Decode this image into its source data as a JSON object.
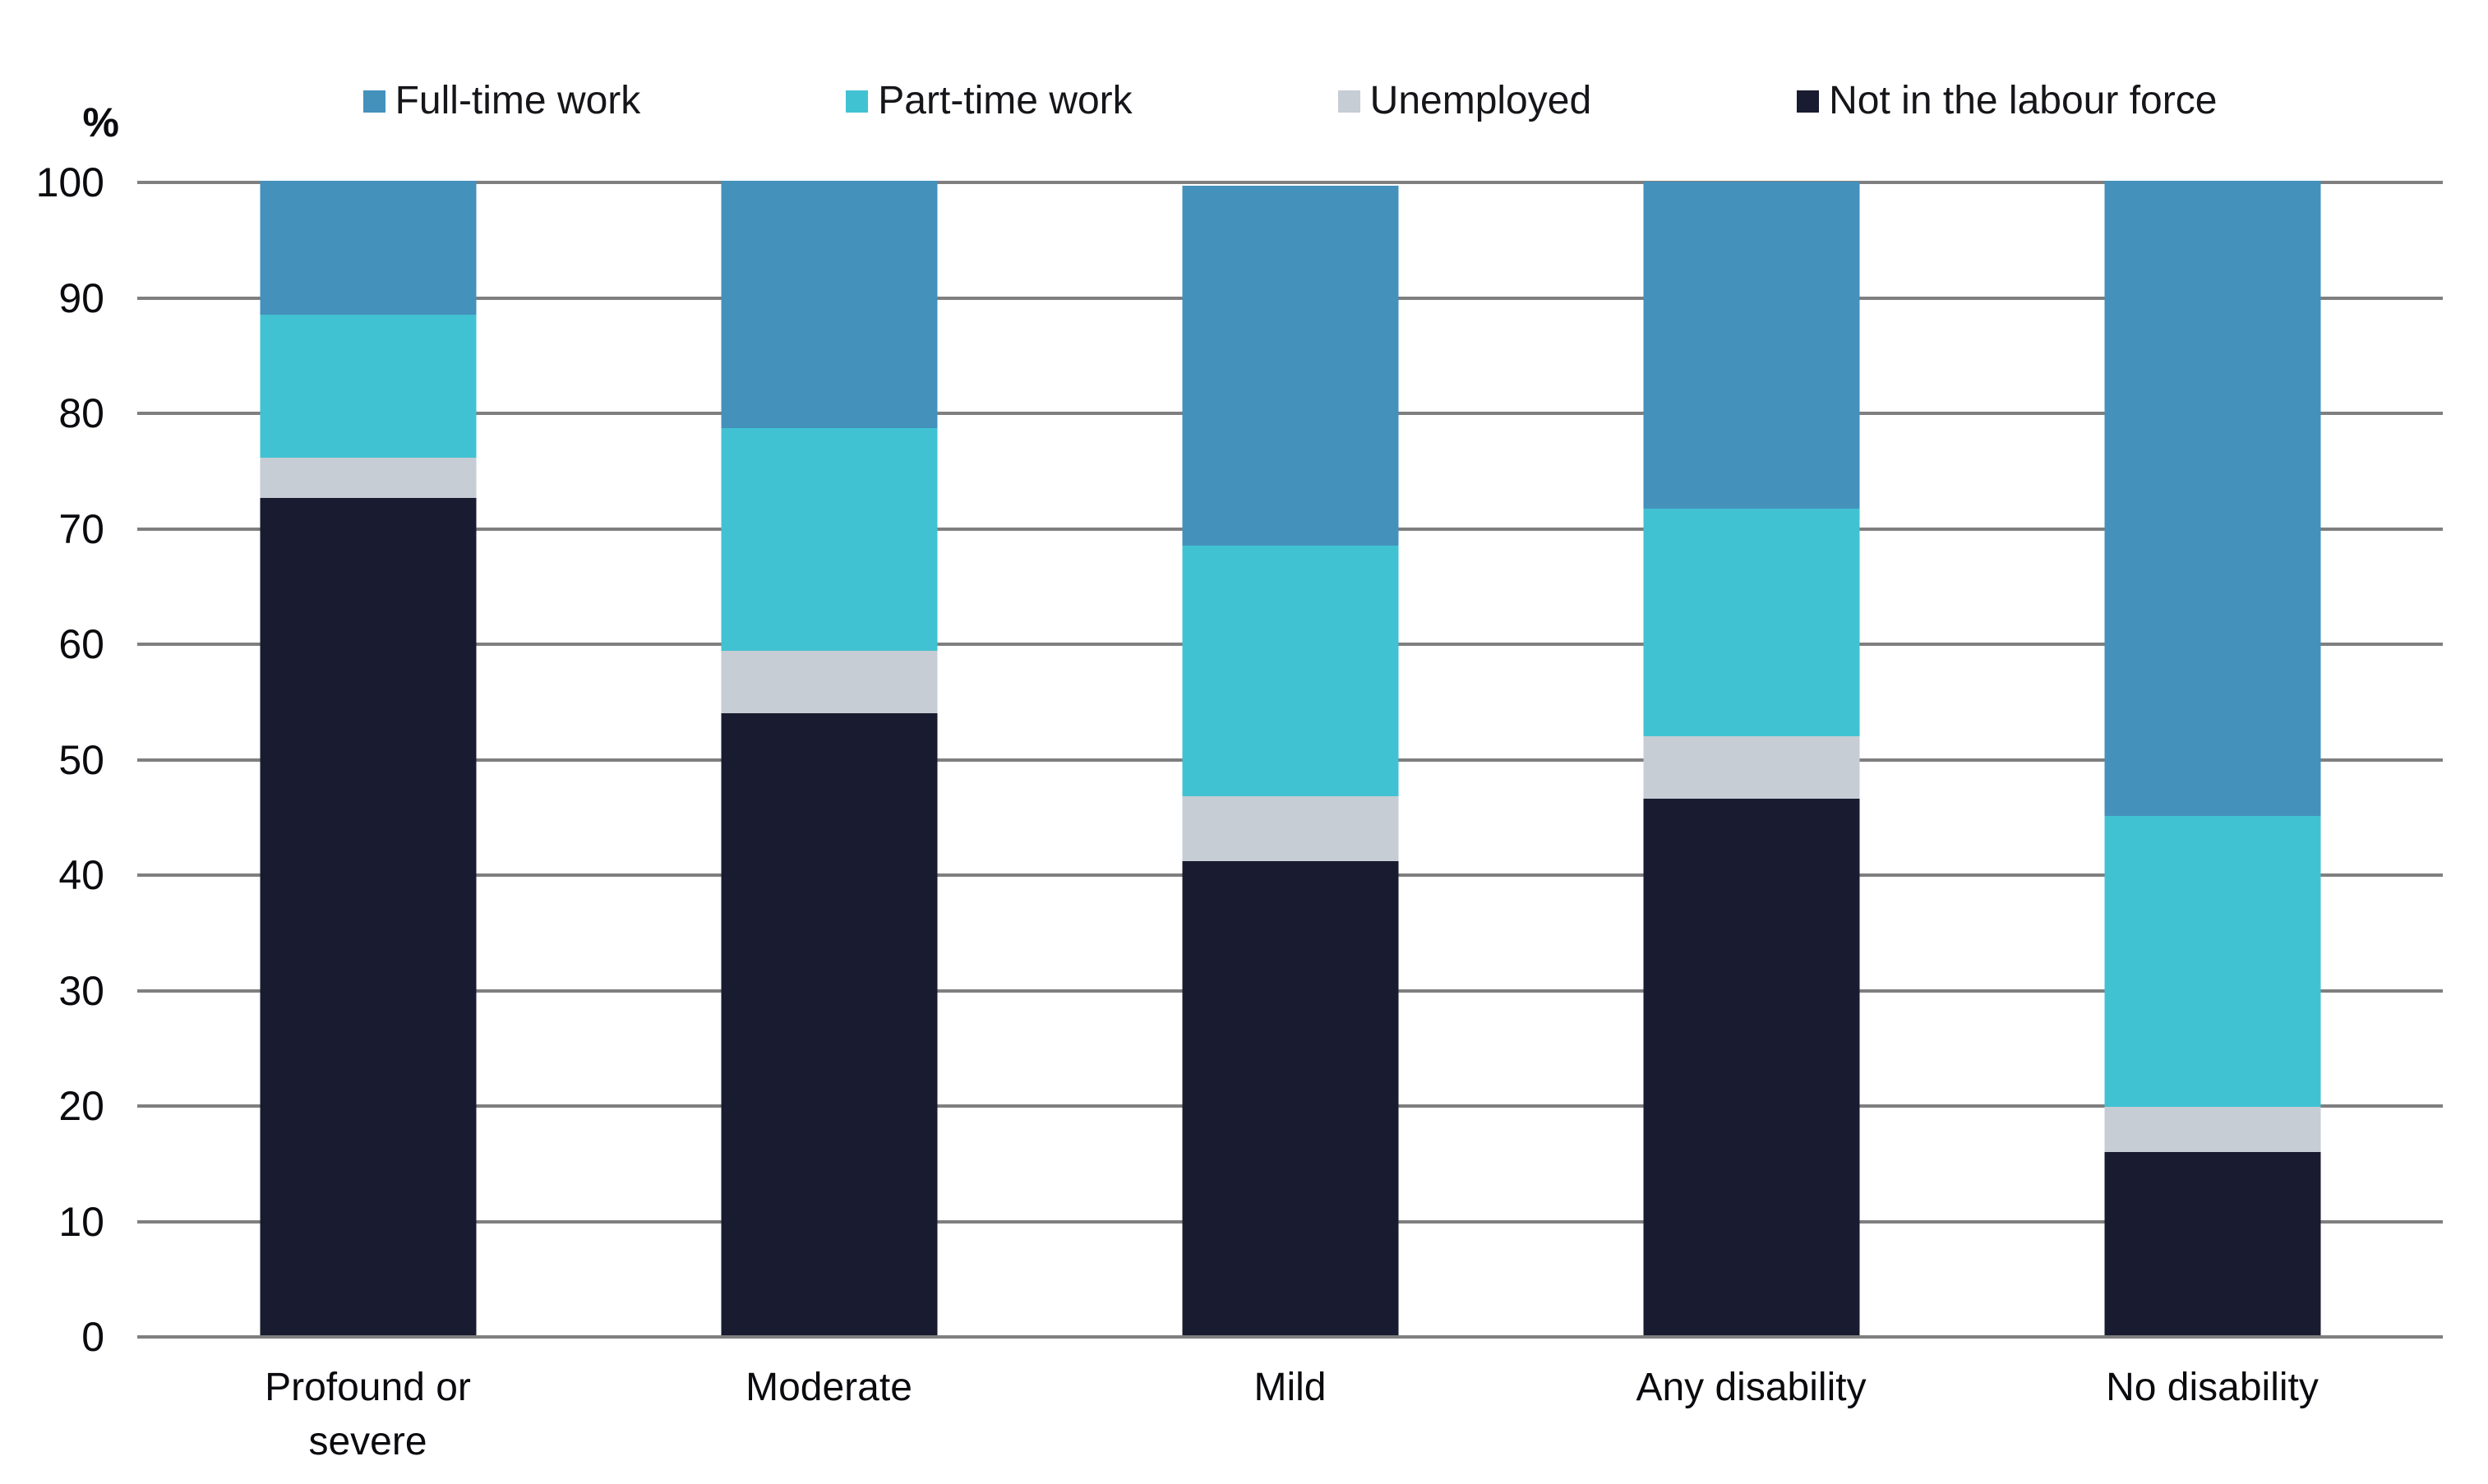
{
  "chart_data": {
    "type": "bar",
    "stacked": true,
    "unit": "%",
    "title": "",
    "ylabel": "%",
    "xlabel": "",
    "ylim": [
      0,
      100
    ],
    "yticks": [
      0,
      10,
      20,
      30,
      40,
      50,
      60,
      70,
      80,
      90,
      100
    ],
    "grid": "horizontal",
    "gridline_color": "#7F7F7F",
    "legend_position": "top",
    "categories": [
      "Profound or severe",
      "Moderate",
      "Mild",
      "Any disability",
      "No disability"
    ],
    "series": [
      {
        "name": "Full-time work",
        "color": "#4491BC",
        "values": [
          11.6,
          21.4,
          31.2,
          28.3,
          55.0
        ]
      },
      {
        "name": "Part-time work",
        "color": "#41C2D3",
        "values": [
          12.4,
          19.3,
          21.7,
          19.7,
          25.2
        ]
      },
      {
        "name": "Unemployed",
        "color": "#C6CDD4",
        "values": [
          3.5,
          5.4,
          5.6,
          5.4,
          3.9
        ]
      },
      {
        "name": "Not in the labour force",
        "color": "#191C30",
        "values": [
          72.5,
          53.9,
          41.1,
          46.5,
          15.9
        ]
      }
    ]
  }
}
